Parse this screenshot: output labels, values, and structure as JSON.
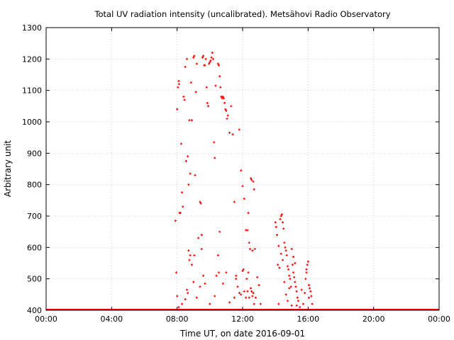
{
  "chart_data": {
    "type": "scatter",
    "title": "Total UV radiation intensity (uncalibrated). Metsähovi Radio Observatory",
    "xlabel": "Time UT, on date 2016-09-01",
    "ylabel": "Arbitrary unit",
    "xlim": [
      0,
      24
    ],
    "ylim": [
      400,
      1300
    ],
    "x_ticks": [
      0,
      4,
      8,
      12,
      16,
      20,
      24
    ],
    "x_tick_labels": [
      "00:00",
      "04:00",
      "08:00",
      "12:00",
      "16:00",
      "20:00",
      "00:00"
    ],
    "y_ticks": [
      400,
      500,
      600,
      700,
      800,
      900,
      1000,
      1100,
      1200,
      1300
    ],
    "y_tick_labels": [
      "400",
      "500",
      "600",
      "700",
      "800",
      "900",
      "1000",
      "1100",
      "1200",
      "1300"
    ],
    "grid": true,
    "marker_color": "#ff0000",
    "baseline": {
      "y": 400,
      "x_start": 0,
      "x_end": 24
    },
    "series": [
      {
        "points": [
          [
            7.9,
            685
          ],
          [
            7.95,
            520
          ],
          [
            8.0,
            1040
          ],
          [
            8.05,
            1110
          ],
          [
            8.1,
            1130
          ],
          [
            8.12,
            1120
          ],
          [
            8.15,
            710
          ],
          [
            8.2,
            710
          ],
          [
            8.25,
            930
          ],
          [
            8.3,
            775
          ],
          [
            8.35,
            730
          ],
          [
            8.4,
            1080
          ],
          [
            8.45,
            1070
          ],
          [
            8.5,
            1175
          ],
          [
            8.55,
            875
          ],
          [
            8.6,
            1200
          ],
          [
            8.65,
            890
          ],
          [
            8.7,
            800
          ],
          [
            8.75,
            1005
          ],
          [
            8.8,
            835
          ],
          [
            8.85,
            1125
          ],
          [
            8.9,
            1005
          ],
          [
            9.0,
            1205
          ],
          [
            9.05,
            1210
          ],
          [
            9.1,
            830
          ],
          [
            9.15,
            1095
          ],
          [
            9.2,
            1185
          ],
          [
            9.3,
            630
          ],
          [
            9.4,
            745
          ],
          [
            9.45,
            740
          ],
          [
            9.5,
            640
          ],
          [
            9.55,
            1205
          ],
          [
            9.6,
            1210
          ],
          [
            9.65,
            1180
          ],
          [
            9.7,
            1180
          ],
          [
            9.75,
            1200
          ],
          [
            9.8,
            1110
          ],
          [
            9.85,
            1060
          ],
          [
            9.9,
            1050
          ],
          [
            9.95,
            1185
          ],
          [
            10.0,
            1190
          ],
          [
            10.05,
            1195
          ],
          [
            10.1,
            1205
          ],
          [
            10.15,
            1220
          ],
          [
            10.2,
            1200
          ],
          [
            10.25,
            935
          ],
          [
            10.3,
            885
          ],
          [
            10.35,
            1115
          ],
          [
            10.5,
            1185
          ],
          [
            10.55,
            1180
          ],
          [
            10.6,
            1145
          ],
          [
            10.65,
            1110
          ],
          [
            10.7,
            1080
          ],
          [
            10.75,
            1075
          ],
          [
            10.8,
            1080
          ],
          [
            10.85,
            1075
          ],
          [
            10.9,
            1060
          ],
          [
            10.95,
            1040
          ],
          [
            11.0,
            1035
          ],
          [
            11.05,
            1010
          ],
          [
            11.1,
            1020
          ],
          [
            11.2,
            965
          ],
          [
            11.3,
            1050
          ],
          [
            11.4,
            960
          ],
          [
            11.5,
            745
          ],
          [
            11.6,
            510
          ],
          [
            11.8,
            975
          ],
          [
            11.9,
            845
          ],
          [
            12.0,
            795
          ],
          [
            12.1,
            755
          ],
          [
            12.2,
            655
          ],
          [
            12.3,
            655
          ],
          [
            12.35,
            710
          ],
          [
            12.4,
            615
          ],
          [
            12.45,
            595
          ],
          [
            12.5,
            820
          ],
          [
            12.55,
            815
          ],
          [
            12.6,
            590
          ],
          [
            12.65,
            810
          ],
          [
            12.7,
            785
          ],
          [
            12.75,
            595
          ],
          [
            8.0,
            445
          ],
          [
            8.1,
            410
          ],
          [
            8.3,
            420
          ],
          [
            8.5,
            435
          ],
          [
            8.6,
            465
          ],
          [
            8.65,
            455
          ],
          [
            8.7,
            590
          ],
          [
            8.75,
            560
          ],
          [
            8.8,
            575
          ],
          [
            8.9,
            545
          ],
          [
            9.0,
            490
          ],
          [
            9.05,
            575
          ],
          [
            9.2,
            440
          ],
          [
            9.4,
            475
          ],
          [
            9.5,
            595
          ],
          [
            9.6,
            510
          ],
          [
            9.7,
            485
          ],
          [
            10.0,
            420
          ],
          [
            10.3,
            445
          ],
          [
            10.4,
            510
          ],
          [
            10.5,
            575
          ],
          [
            10.55,
            520
          ],
          [
            10.6,
            650
          ],
          [
            10.8,
            485
          ],
          [
            11.0,
            520
          ],
          [
            11.2,
            425
          ],
          [
            11.5,
            440
          ],
          [
            11.6,
            500
          ],
          [
            11.7,
            475
          ],
          [
            11.8,
            455
          ],
          [
            11.9,
            450
          ],
          [
            12.0,
            525
          ],
          [
            12.05,
            530
          ],
          [
            12.1,
            460
          ],
          [
            12.2,
            440
          ],
          [
            12.25,
            500
          ],
          [
            12.3,
            460
          ],
          [
            12.35,
            520
          ],
          [
            12.4,
            440
          ],
          [
            12.5,
            470
          ],
          [
            12.55,
            460
          ],
          [
            12.6,
            445
          ],
          [
            12.65,
            455
          ],
          [
            12.7,
            420
          ],
          [
            12.8,
            440
          ],
          [
            12.9,
            505
          ],
          [
            13.0,
            480
          ],
          [
            13.1,
            420
          ],
          [
            14.0,
            680
          ],
          [
            14.05,
            665
          ],
          [
            14.1,
            640
          ],
          [
            14.15,
            545
          ],
          [
            14.2,
            605
          ],
          [
            14.25,
            535
          ],
          [
            14.3,
            690
          ],
          [
            14.35,
            700
          ],
          [
            14.4,
            705
          ],
          [
            14.45,
            680
          ],
          [
            14.5,
            660
          ],
          [
            14.55,
            615
          ],
          [
            14.6,
            600
          ],
          [
            14.65,
            590
          ],
          [
            14.7,
            575
          ],
          [
            14.75,
            540
          ],
          [
            14.8,
            530
          ],
          [
            14.85,
            510
          ],
          [
            14.9,
            500
          ],
          [
            14.95,
            475
          ],
          [
            15.0,
            595
          ],
          [
            15.05,
            545
          ],
          [
            15.1,
            520
          ],
          [
            15.15,
            505
          ],
          [
            15.2,
            490
          ],
          [
            15.25,
            475
          ],
          [
            15.3,
            460
          ],
          [
            15.35,
            440
          ],
          [
            15.4,
            430
          ],
          [
            15.5,
            410
          ],
          [
            15.6,
            465
          ],
          [
            15.7,
            420
          ],
          [
            15.8,
            455
          ],
          [
            15.85,
            500
          ],
          [
            15.9,
            520
          ],
          [
            15.95,
            545
          ],
          [
            16.0,
            555
          ],
          [
            16.05,
            480
          ],
          [
            16.1,
            470
          ],
          [
            16.15,
            460
          ],
          [
            16.2,
            445
          ],
          [
            16.25,
            420
          ],
          [
            14.2,
            420
          ],
          [
            14.35,
            580
          ],
          [
            14.45,
            560
          ],
          [
            14.55,
            490
          ],
          [
            14.65,
            450
          ],
          [
            14.75,
            430
          ],
          [
            14.85,
            470
          ],
          [
            15.0,
            415
          ],
          [
            15.1,
            570
          ],
          [
            15.2,
            550
          ],
          [
            15.3,
            415
          ],
          [
            15.9,
            530
          ],
          [
            16.05,
            440
          ]
        ]
      }
    ]
  }
}
